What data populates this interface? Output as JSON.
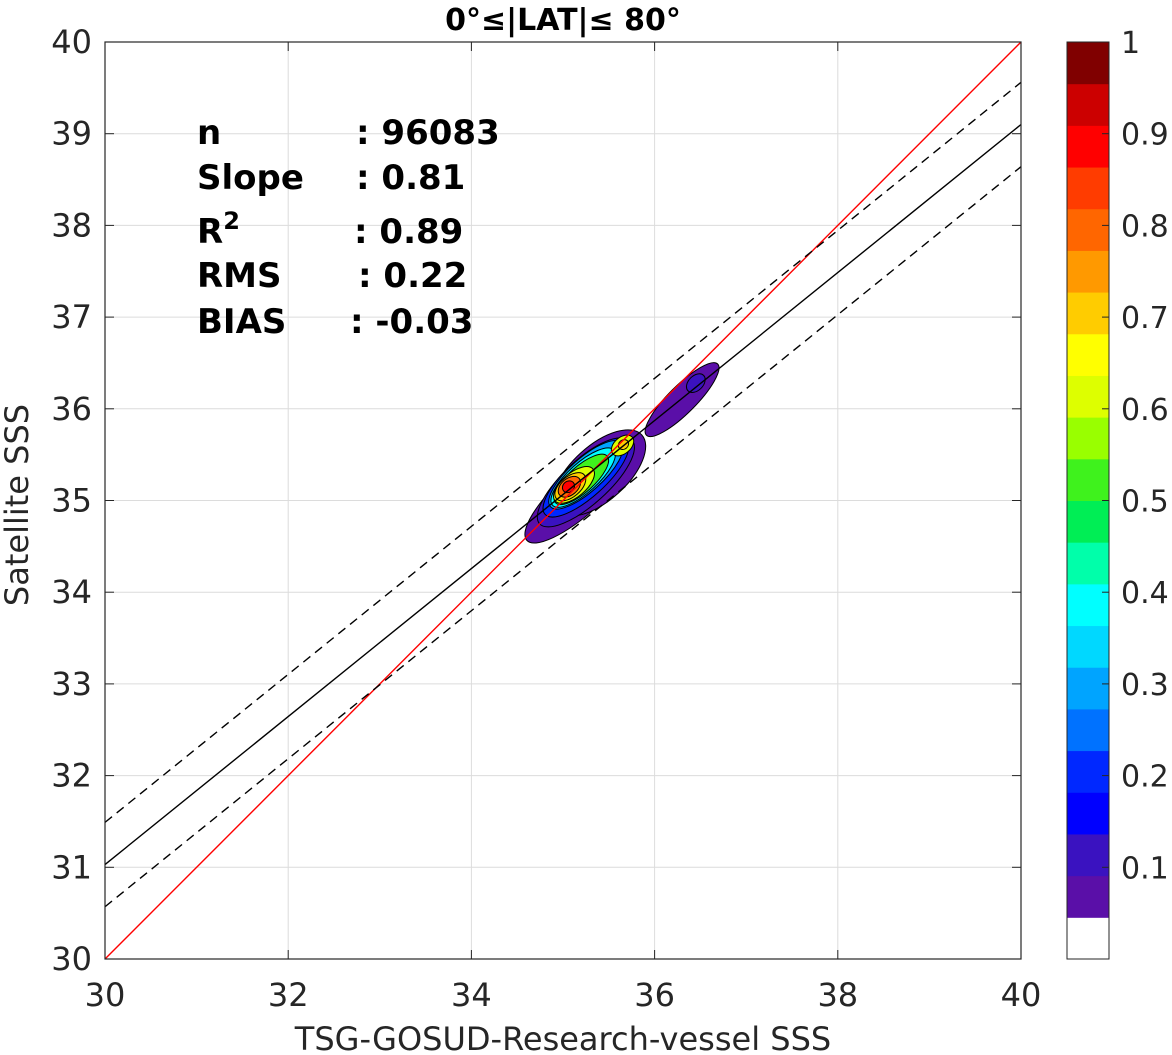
{
  "chart_data": {
    "type": "heatmap",
    "title": "0°≤|LAT|≤ 80°",
    "xlabel": "TSG-GOSUD-Research-vessel SSS",
    "ylabel": "Satellite SSS",
    "xlim": [
      30,
      40
    ],
    "ylim": [
      30,
      40
    ],
    "xticks": [
      "30",
      "32",
      "34",
      "36",
      "38",
      "40"
    ],
    "yticks": [
      "30",
      "31",
      "32",
      "33",
      "34",
      "35",
      "36",
      "37",
      "38",
      "39",
      "40"
    ],
    "grid": true,
    "stats": {
      "n_label": "n",
      "n_value": ": 96083",
      "slope_label": "Slope",
      "slope_value": ": 0.81",
      "r2_label": "R",
      "r2_sup": "2",
      "r2_value": ": 0.89",
      "rms_label": "RMS",
      "rms_value": ": 0.22",
      "bias_label": "BIAS",
      "bias_value": ": -0.03"
    },
    "lines": {
      "identity": {
        "color": "#ff0000",
        "style": "solid",
        "points": [
          [
            30,
            30
          ],
          [
            40,
            40
          ]
        ]
      },
      "fit": {
        "color": "#000000",
        "style": "solid",
        "points": [
          [
            30,
            31.03
          ],
          [
            40,
            39.1
          ]
        ]
      },
      "fit_upper": {
        "color": "#000000",
        "style": "dashed",
        "points": [
          [
            30,
            31.49
          ],
          [
            40,
            39.56
          ]
        ]
      },
      "fit_lower": {
        "color": "#000000",
        "style": "dashed",
        "points": [
          [
            30,
            30.57
          ],
          [
            40,
            38.64
          ]
        ]
      }
    },
    "density_contours": [
      {
        "level": 0.05,
        "blobs": [
          {
            "cx": 35.2,
            "cy": 35.1,
            "rx": 0.8,
            "ry": 0.24,
            "angle": 42
          },
          {
            "cx": 35.4,
            "cy": 35.3,
            "rx": 0.62,
            "ry": 0.3,
            "angle": 42
          },
          {
            "cx": 36.3,
            "cy": 36.1,
            "rx": 0.55,
            "ry": 0.15,
            "angle": 45
          }
        ]
      },
      {
        "level": 0.1,
        "blobs": [
          {
            "cx": 35.25,
            "cy": 35.2,
            "rx": 0.68,
            "ry": 0.24,
            "angle": 42
          },
          {
            "cx": 36.45,
            "cy": 36.28,
            "rx": 0.12,
            "ry": 0.08,
            "angle": 45
          }
        ]
      },
      {
        "level": 0.2,
        "blobs": [
          {
            "cx": 35.25,
            "cy": 35.25,
            "rx": 0.6,
            "ry": 0.21,
            "angle": 42
          }
        ]
      },
      {
        "level": 0.3,
        "blobs": [
          {
            "cx": 35.25,
            "cy": 35.28,
            "rx": 0.52,
            "ry": 0.18,
            "angle": 42
          }
        ]
      },
      {
        "level": 0.4,
        "blobs": [
          {
            "cx": 35.22,
            "cy": 35.25,
            "rx": 0.45,
            "ry": 0.16,
            "angle": 42
          }
        ]
      },
      {
        "level": 0.5,
        "blobs": [
          {
            "cx": 35.2,
            "cy": 35.23,
            "rx": 0.38,
            "ry": 0.14,
            "angle": 42
          }
        ]
      },
      {
        "level": 0.6,
        "blobs": [
          {
            "cx": 35.12,
            "cy": 35.17,
            "rx": 0.27,
            "ry": 0.13,
            "angle": 40
          },
          {
            "cx": 35.65,
            "cy": 35.6,
            "rx": 0.14,
            "ry": 0.09,
            "angle": 40
          }
        ]
      },
      {
        "level": 0.7,
        "blobs": [
          {
            "cx": 35.08,
            "cy": 35.15,
            "rx": 0.2,
            "ry": 0.11,
            "angle": 40
          },
          {
            "cx": 35.66,
            "cy": 35.61,
            "rx": 0.06,
            "ry": 0.05,
            "angle": 40
          }
        ]
      },
      {
        "level": 0.8,
        "blobs": [
          {
            "cx": 35.07,
            "cy": 35.15,
            "rx": 0.14,
            "ry": 0.09,
            "angle": 40
          }
        ]
      },
      {
        "level": 0.9,
        "blobs": [
          {
            "cx": 35.06,
            "cy": 35.15,
            "rx": 0.07,
            "ry": 0.06,
            "angle": 40
          }
        ]
      }
    ],
    "colorbar": {
      "colors": [
        "#ffffff",
        "#5a0fa8",
        "#3a12c0",
        "#0000ff",
        "#0028ff",
        "#0072ff",
        "#00a4ff",
        "#00d8ff",
        "#00ffff",
        "#00ffaa",
        "#00ee55",
        "#3ff21d",
        "#99ff00",
        "#ddff00",
        "#ffff00",
        "#ffcc00",
        "#ff9900",
        "#ff6600",
        "#ff3c00",
        "#ff0000",
        "#cc0000",
        "#800000"
      ],
      "tick_labels": [
        "0.1",
        "0.2",
        "0.3",
        "0.4",
        "0.5",
        "0.6",
        "0.7",
        "0.8",
        "0.9",
        "1"
      ],
      "tick_values": [
        0.1,
        0.2,
        0.3,
        0.4,
        0.5,
        0.6,
        0.7,
        0.8,
        0.9,
        1.0
      ],
      "range": [
        0,
        1
      ]
    }
  }
}
